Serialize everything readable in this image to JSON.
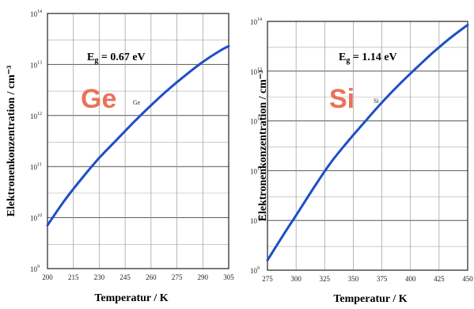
{
  "colors": {
    "curve": "#1f4fc8",
    "accent": "#e8735a",
    "grid": "#555555",
    "frame": "#222222"
  },
  "chart_data": [
    {
      "type": "line",
      "panel": "left",
      "big_label": "Ge",
      "small_label": "Ge",
      "annotation": {
        "main": "E",
        "sub": "g",
        "rest": " = 0.67 eV"
      },
      "xlabel": "Temperatur / K",
      "ylabel": "Elektronenkonzentration / cm⁻³",
      "xlim": [
        200,
        305
      ],
      "ylim_exp": [
        9,
        14
      ],
      "yscale": "log",
      "x_ticks": [
        "200",
        "215",
        "230",
        "245",
        "260",
        "275",
        "290",
        "305"
      ],
      "y_ticks": [
        {
          "base": "10",
          "exp": "9"
        },
        {
          "base": "10",
          "exp": "10"
        },
        {
          "base": "10",
          "exp": "11"
        },
        {
          "base": "10",
          "exp": "12"
        },
        {
          "base": "10",
          "exp": "13"
        },
        {
          "base": "10",
          "exp": "14"
        }
      ],
      "series": [
        {
          "x": [
            200,
            210,
            220,
            230,
            240,
            250,
            260,
            270,
            280,
            290,
            300,
            305
          ],
          "log10_y": [
            9.85,
            10.34,
            10.77,
            11.17,
            11.52,
            11.87,
            12.2,
            12.51,
            12.79,
            13.05,
            13.27,
            13.36
          ]
        }
      ]
    },
    {
      "type": "line",
      "panel": "right",
      "big_label": "Si",
      "small_label": "Si",
      "annotation": {
        "main": "E",
        "sub": "g",
        "rest": " = 1.14 eV"
      },
      "xlabel": "Temperatur / K",
      "ylabel": "Elektronenkonzentration / cm⁻³",
      "xlim": [
        275,
        450
      ],
      "ylim_exp": [
        9,
        14
      ],
      "yscale": "log",
      "x_ticks": [
        "275",
        "300",
        "325",
        "350",
        "375",
        "400",
        "425",
        "450"
      ],
      "y_ticks": [
        {
          "base": "10",
          "exp": "9"
        },
        {
          "base": "10",
          "exp": "10"
        },
        {
          "base": "10",
          "exp": "11"
        },
        {
          "base": "10",
          "exp": "12"
        },
        {
          "base": "10",
          "exp": "13"
        },
        {
          "base": "10",
          "exp": "14"
        }
      ],
      "series": [
        {
          "x": [
            275,
            290,
            300,
            315,
            330,
            345,
            360,
            375,
            390,
            405,
            420,
            435,
            450
          ],
          "log10_y": [
            9.2,
            9.75,
            10.1,
            10.64,
            11.15,
            11.58,
            11.98,
            12.37,
            12.73,
            13.06,
            13.38,
            13.67,
            13.93
          ]
        }
      ]
    }
  ]
}
